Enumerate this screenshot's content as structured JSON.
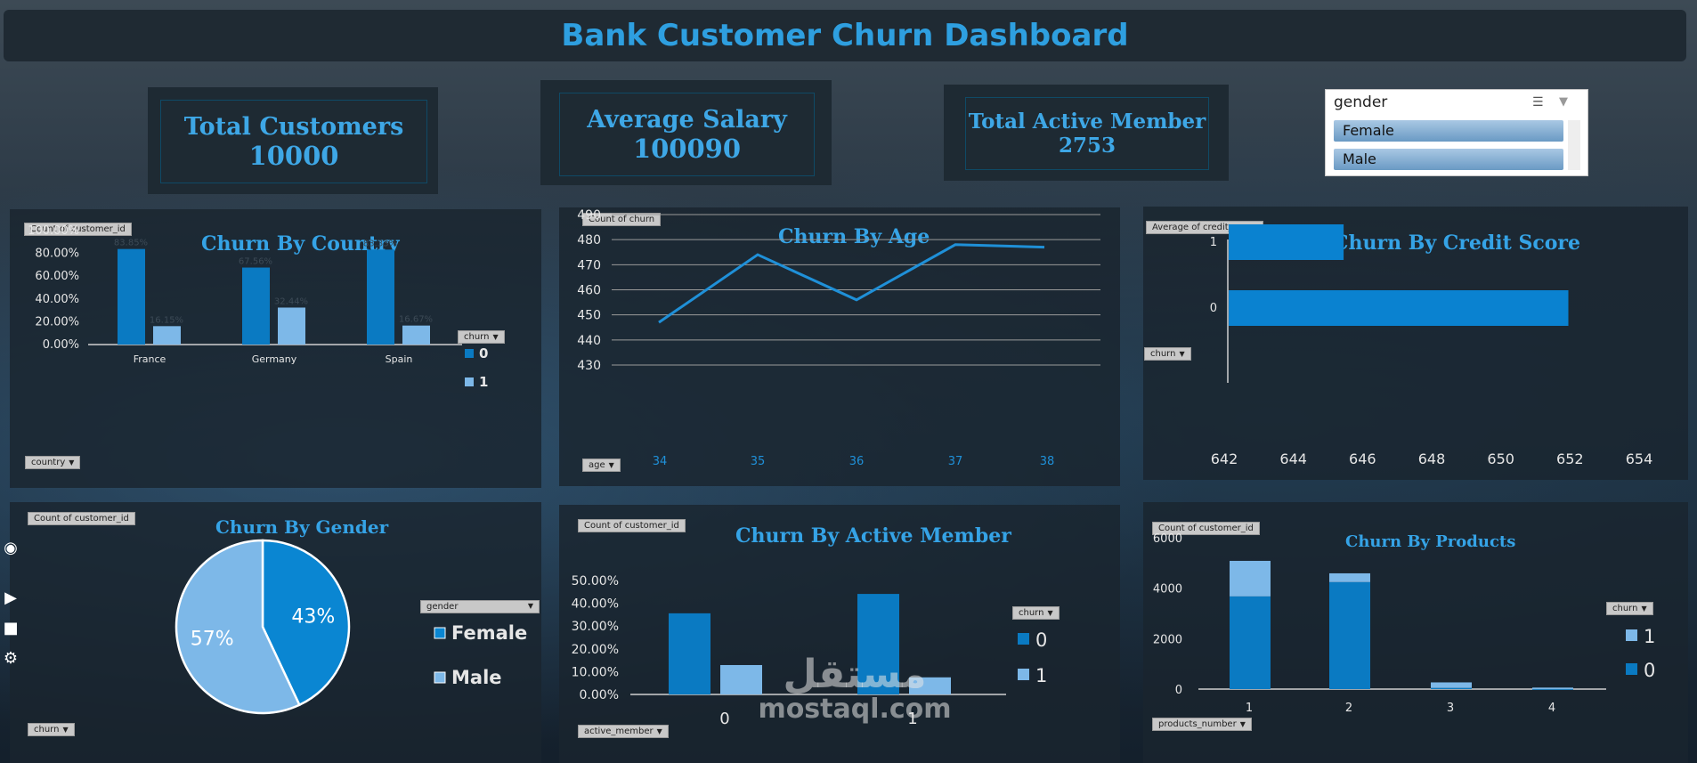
{
  "title": "Bank Customer Churn Dashboard",
  "kpis": {
    "total_customers": {
      "label": "Total Customers",
      "value": "10000"
    },
    "average_salary": {
      "label": "Average Salary",
      "value": "100090"
    },
    "total_active_member": {
      "label": "Total Active Member",
      "value": "2753"
    }
  },
  "slicer": {
    "title": "gender",
    "items": [
      "Female",
      "Male"
    ]
  },
  "colors": {
    "accent": "#2e9fe0",
    "series_0": "#0a7ac2",
    "series_1": "#7db8e8",
    "panel": "#1a242e"
  },
  "charts": {
    "country": {
      "title": "Churn By Country",
      "value_tag": "Count of customer_id",
      "axis_tag": "country",
      "legend_tag": "churn",
      "legend": [
        "0",
        "1"
      ],
      "y_ticks": [
        "100.00%",
        "80.00%",
        "60.00%",
        "40.00%",
        "20.00%",
        "0.00%"
      ],
      "data_labels": [
        "83.85%",
        "16.15%",
        "67.56%",
        "32.44%",
        "83.33%",
        "16.67%"
      ]
    },
    "age": {
      "title": "Churn By Age",
      "value_tag": "Count of churn",
      "axis_tag": "age",
      "y_ticks": [
        "490",
        "480",
        "470",
        "460",
        "450",
        "440",
        "430"
      ],
      "x_ticks": [
        "34",
        "35",
        "36",
        "37",
        "38"
      ]
    },
    "credit": {
      "title": "Churn By Credit Score",
      "value_tag": "Average of credit_score",
      "axis_tag": "churn",
      "y_ticks": [
        "1",
        "0"
      ],
      "x_ticks": [
        "642",
        "644",
        "646",
        "648",
        "650",
        "652",
        "654"
      ]
    },
    "gender": {
      "title": "Churn By Gender",
      "value_tag": "Count of customer_id",
      "legend_tag": "gender",
      "filter_tag": "churn",
      "slice_labels": [
        "43%",
        "57%"
      ],
      "legend": [
        "Female",
        "Male"
      ]
    },
    "active": {
      "title": "Churn By Active Member",
      "value_tag": "Count of customer_id",
      "axis_tag": "active_member",
      "legend_tag": "churn",
      "legend": [
        "0",
        "1"
      ],
      "y_ticks": [
        "50.00%",
        "40.00%",
        "30.00%",
        "20.00%",
        "10.00%",
        "0.00%"
      ],
      "x_ticks": [
        "0",
        "1"
      ]
    },
    "products": {
      "title": "Churn By Products",
      "value_tag": "Count of customer_id",
      "axis_tag": "products_number",
      "legend_tag": "churn",
      "legend": [
        "1",
        "0"
      ],
      "y_ticks": [
        "6000",
        "4000",
        "2000",
        "0"
      ],
      "x_ticks": [
        "1",
        "2",
        "3",
        "4"
      ]
    }
  },
  "chart_data": [
    {
      "type": "bar",
      "title": "Churn By Country",
      "categories": [
        "France",
        "Germany",
        "Spain"
      ],
      "series": [
        {
          "name": "0",
          "values": [
            83.85,
            67.56,
            83.33
          ]
        },
        {
          "name": "1",
          "values": [
            16.15,
            32.44,
            16.67
          ]
        }
      ],
      "ylim": [
        0,
        100
      ],
      "grid": false,
      "legend": "right"
    },
    {
      "type": "line",
      "title": "Churn By Age",
      "x": [
        34,
        35,
        36,
        37,
        38
      ],
      "series": [
        {
          "values": [
            447,
            474,
            456,
            478,
            477
          ]
        }
      ],
      "ylim": [
        430,
        490
      ],
      "grid": true
    },
    {
      "type": "bar",
      "orientation": "horizontal",
      "title": "Churn By Credit Score",
      "categories": [
        "1",
        "0"
      ],
      "values": [
        645.35,
        651.85
      ],
      "xlim": [
        642,
        654
      ]
    },
    {
      "type": "pie",
      "title": "Churn By Gender",
      "categories": [
        "Female",
        "Male"
      ],
      "values": [
        43,
        57
      ],
      "legend": "right"
    },
    {
      "type": "bar",
      "title": "Churn By Active Member",
      "categories": [
        "0",
        "1"
      ],
      "series": [
        {
          "name": "0",
          "values": [
            35.6,
            44.1
          ]
        },
        {
          "name": "1",
          "values": [
            12.9,
            7.5
          ]
        }
      ],
      "ylim": [
        0,
        50
      ],
      "legend": "right"
    },
    {
      "type": "bar",
      "stacked": true,
      "title": "Churn By Products",
      "categories": [
        "1",
        "2",
        "3",
        "4"
      ],
      "series": [
        {
          "name": "0",
          "values": [
            3675,
            4242,
            46,
            0
          ]
        },
        {
          "name": "1",
          "values": [
            1409,
            348,
            220,
            60
          ]
        }
      ],
      "ylim": [
        0,
        6000
      ],
      "legend": "right"
    }
  ],
  "sidebar": {
    "icons": [
      "camera-icon",
      "video-icon",
      "folder-icon",
      "gear-icon"
    ]
  },
  "watermark": {
    "line1": "مستقل",
    "line2": "mostaql.com"
  }
}
